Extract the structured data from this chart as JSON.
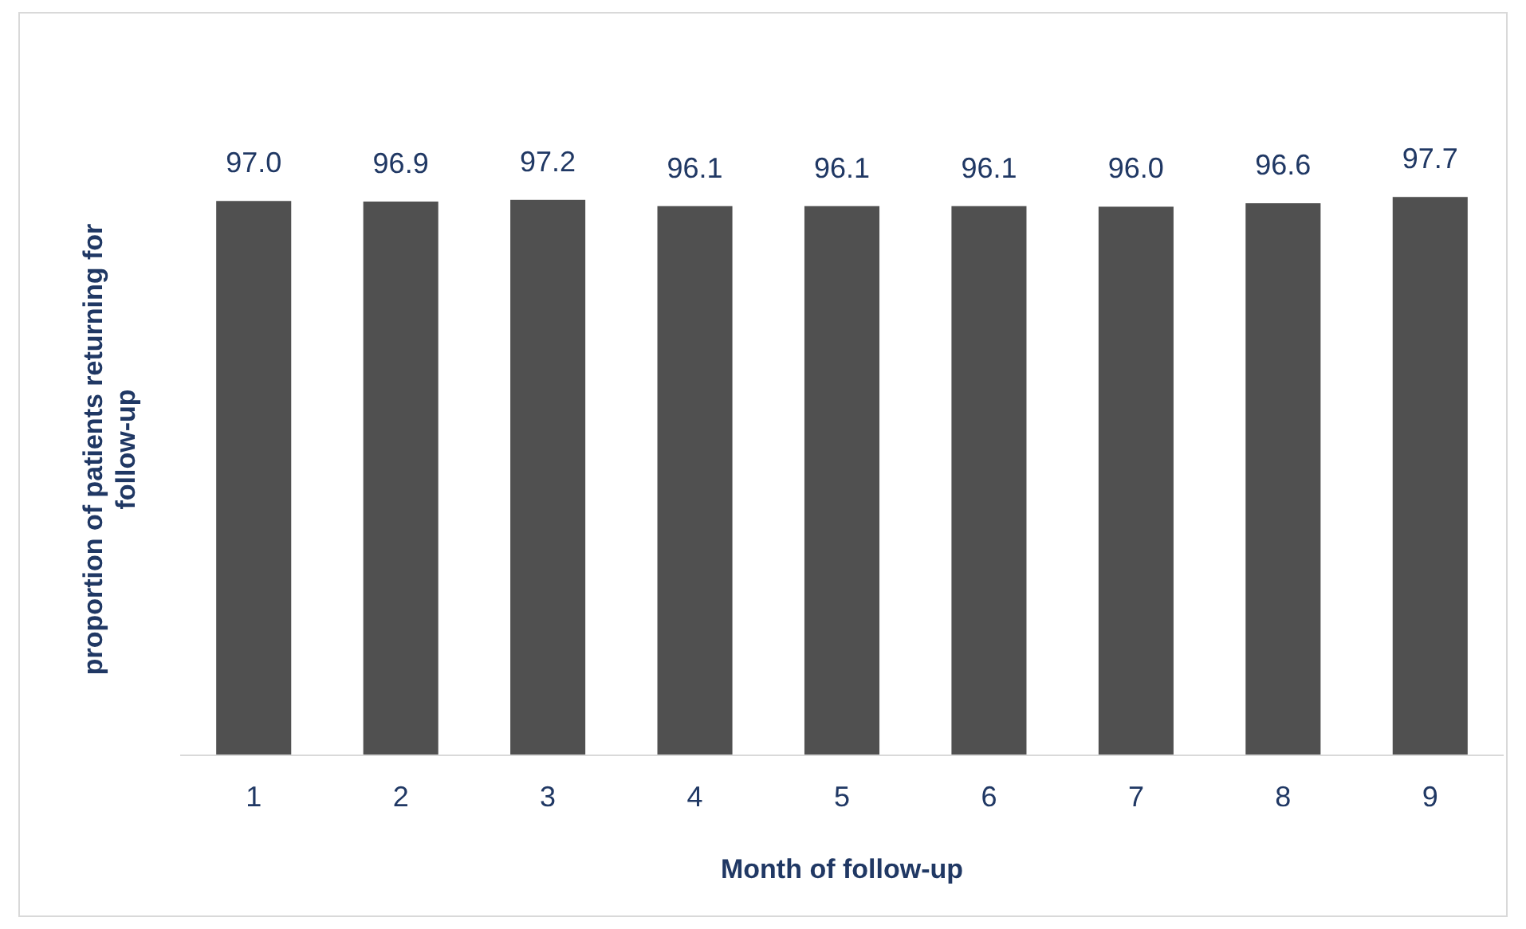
{
  "chart_data": {
    "type": "bar",
    "xlabel": "Month of follow-up",
    "ylabel": "proportion of patients returning for follow-up",
    "categories": [
      "1",
      "2",
      "3",
      "4",
      "5",
      "6",
      "7",
      "8",
      "9"
    ],
    "values": [
      97.0,
      96.9,
      97.2,
      96.1,
      96.1,
      96.1,
      96.0,
      96.6,
      97.7
    ],
    "value_labels": [
      "97.0",
      "96.9",
      "97.2",
      "96.1",
      "96.1",
      "96.1",
      "96.0",
      "96.6",
      "97.7"
    ],
    "color": "#505050"
  }
}
